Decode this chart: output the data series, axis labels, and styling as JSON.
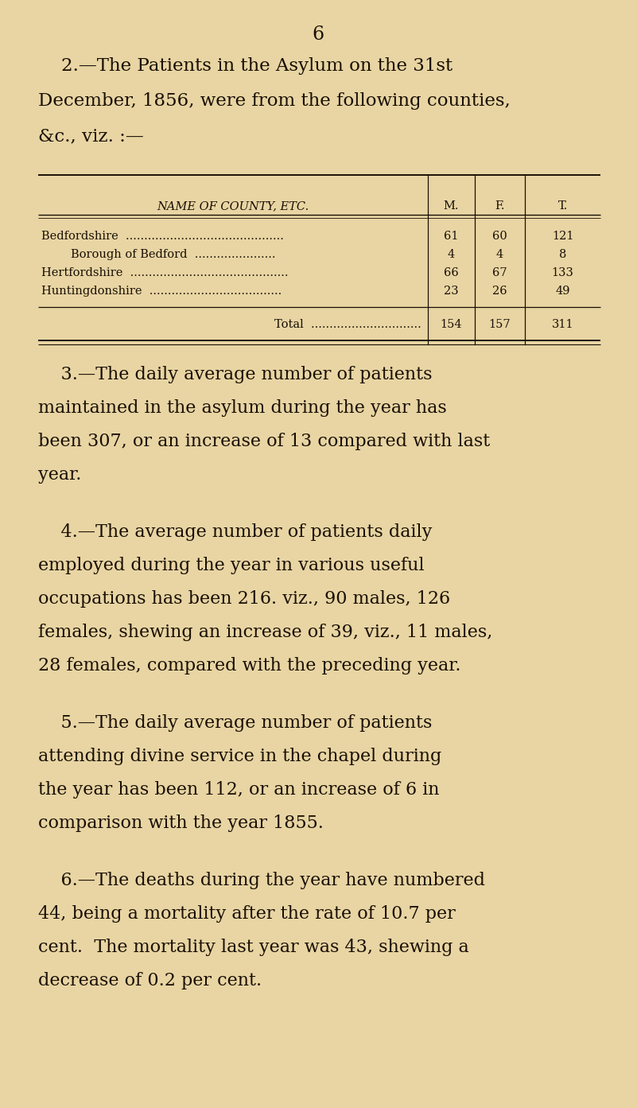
{
  "bg_color": "#e8d5a3",
  "text_color": "#1a0f05",
  "page_number": "6",
  "title_lines": [
    "    2.—The Patients in the Asylum on the 31st",
    "December, 1856, were from the following counties,",
    "&c., viz. :—"
  ],
  "table_header": [
    "NAME OF COUNTY, ETC.",
    "M.",
    "F.",
    "T."
  ],
  "table_rows": [
    [
      "Bedfordshire  ...........................................",
      "61",
      "60",
      "121"
    ],
    [
      "        Borough of Bedford  ......................",
      "4",
      "4",
      "8"
    ],
    [
      "Hertfordshire  ...........................................",
      "66",
      "67",
      "133"
    ],
    [
      "Huntingdonshire  ....................................",
      "23",
      "26",
      "49"
    ]
  ],
  "table_total_label": "Total  ..............................",
  "table_total_vals": [
    "154",
    "157",
    "311"
  ],
  "para3_lines": [
    "    3.—The daily average number of patients",
    "maintained in the asylum during the year has",
    "been 307, or an increase of 13 compared with last",
    "year."
  ],
  "para4_lines": [
    "    4.—The average number of patients daily",
    "employed during the year in various useful",
    "occupations has been 216. viz., 90 males, 126",
    "females, shewing an increase of 39, viz., 11 males,",
    "28 females, compared with the preceding year."
  ],
  "para5_lines": [
    "    5.—The daily average number of patients",
    "attending divine service in the chapel during",
    "the year has been 112, or an increase of 6 in",
    "comparison with the year 1855."
  ],
  "para6_lines": [
    "    6.—The deaths during the year have numbered",
    "44, being a mortality after the rate of 10.7 per",
    "cent.  The mortality last year was 43, shewing a",
    "decrease of 0.2 per cent."
  ]
}
